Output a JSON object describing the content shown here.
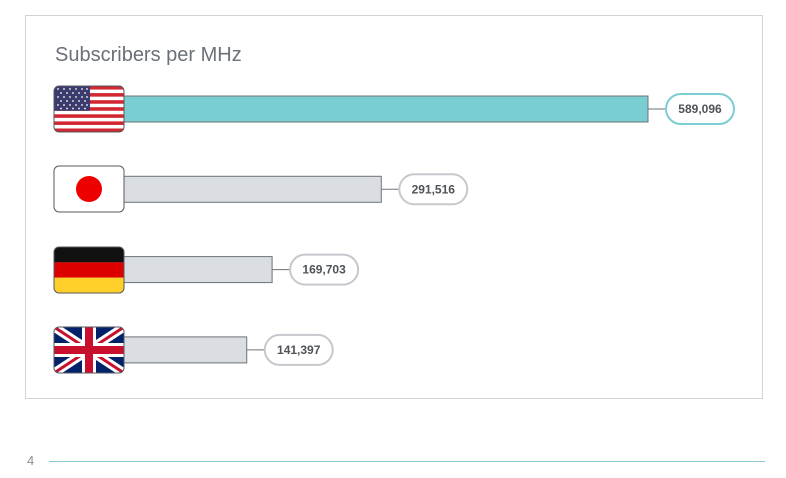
{
  "chart_data": {
    "type": "bar",
    "orientation": "horizontal",
    "title": "Subscribers per MHz",
    "categories": [
      "United States",
      "Japan",
      "Germany",
      "United Kingdom"
    ],
    "flag_icons": [
      "usa-flag-icon",
      "japan-flag-icon",
      "germany-flag-icon",
      "uk-flag-icon"
    ],
    "values": [
      589096,
      291516,
      169703,
      141397
    ],
    "value_labels": [
      "589,096",
      "291,516",
      "169,703",
      "141,397"
    ],
    "xlim": [
      0,
      589096
    ],
    "grid": false,
    "legend": "none",
    "highlight_index": 0
  },
  "colors": {
    "highlight_bar": "#7acdd1",
    "highlight_outline": "#7acdd1",
    "default_bar": "#dadde1",
    "default_outline": "#c5c8cc",
    "bar_stroke": "#6d7378",
    "footer_rule": "#8ccad0"
  },
  "footer": {
    "page_number": "4"
  }
}
